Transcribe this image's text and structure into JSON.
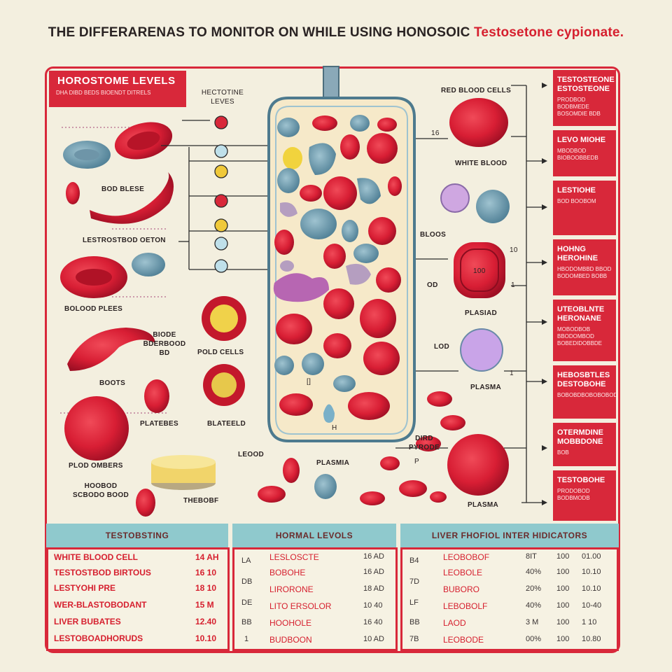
{
  "title": {
    "main": "THE DIFFERARENAS TO MONITOR ON WHILE USING HONOSOIC",
    "accent": "Testosetone cypionate."
  },
  "header_box": {
    "title": "HOROSTOME LEVELS",
    "subtitle": "DHA DIBD BEDS BIOENDT DITRELS"
  },
  "left_labels": [
    "BOD BLESE",
    "LESTROSTBOD OETON",
    "BOLOOD PLEES",
    "BIODE BDERBOOD BD",
    "BOOTS",
    "PLATEBES",
    "PLOD OMBERS",
    "HOOBOD SCBODO BOOD"
  ],
  "mid_labels": {
    "top": "HECTOTINE LEVES",
    "pold_cells": "POLD CELLS",
    "blateeld": "BLATEELD",
    "lood": "LEOOD",
    "thebobf": "THEBOBF",
    "plasmia_bottom": "PLASMIA"
  },
  "center_labels": {
    "n16": "16",
    "white_blood": "WHITE BLOOD",
    "bloos": "BLOOS",
    "od": "OD",
    "lod": "LOD",
    "sq": "[]",
    "n1": "H"
  },
  "right_labels": {
    "red_cells": "RED BLOOD CELLS",
    "n10": "10",
    "n1": "1",
    "oval_text": "100",
    "plasiad": "PLASIAD",
    "plasma_mid": "PLASMA",
    "n1b": "1",
    "pyrode": "DIRD PYRODE",
    "p": "P",
    "plasma_low": "PLASMA"
  },
  "right_boxes": [
    {
      "title": "TESTOSTEONE ESTOSTEONE",
      "sub": "PRODBOD BODBMEDE BOSOMDIE BDB"
    },
    {
      "title": "LEVO MIOHE",
      "sub": "MBODBOD BIOBOOBBEDB"
    },
    {
      "title": "LESTIOHE",
      "sub": "BOD BOOBOM"
    },
    {
      "title": "HOHNG HEROHINE",
      "sub": "HBODOMBBD BBOD BODOMBED BOBB"
    },
    {
      "title": "UTEOBLNTE HERONANE",
      "sub": "MOBODBOB BBODOMBOD BOBEDIDOBBDE"
    },
    {
      "title": "HEBOSBTLES DESTOBOHE",
      "sub": "BOBOBDBOBOBOBOD"
    },
    {
      "title": "OTERMDINE MOBBDONE",
      "sub": "BOB"
    },
    {
      "title": "TESTOBOHE",
      "sub": "PRODOBOD BODBMODB"
    }
  ],
  "bottom": {
    "headers": [
      "TESTOBSTING",
      "HORMAL LEVOLS",
      "LIVER FHOFIOL INTER HIDICATORS"
    ],
    "table1": [
      [
        "WHITE BLOOD CELL",
        "14 AH"
      ],
      [
        "TESTOSTBOD BIRTOUS",
        "16 10"
      ],
      [
        "LESTYOHI PRE",
        "18 10"
      ],
      [
        "WER-BLASTOBODANT",
        "15 M"
      ],
      [
        "LIVER BUBATES",
        "12.40"
      ],
      [
        "LESTOBOADHORUDS",
        "10.10"
      ]
    ],
    "table2_codes": [
      "LA",
      "DB",
      "DE",
      "BB",
      "1"
    ],
    "table2": [
      [
        "LESLOSCTE",
        "16 AD"
      ],
      [
        "BOBOHE",
        "16 AD"
      ],
      [
        "LIRORONE",
        "18 AD"
      ],
      [
        "LITO ERSOLOR",
        "10 40"
      ],
      [
        "HOOHOLE",
        "16 40"
      ],
      [
        "BUDBOON",
        "10 AD"
      ]
    ],
    "table3_codes": [
      "B4",
      "7D",
      "LF",
      "BB",
      "7B"
    ],
    "table3": [
      [
        "LEOBOBOF",
        "8IT",
        "100",
        "01.00"
      ],
      [
        "LEOBOLE",
        "40%",
        "100",
        "10.10"
      ],
      [
        "BUBORO",
        "20%",
        "100",
        "10.10"
      ],
      [
        "LEBOBOLF",
        "40%",
        "100",
        "10-40"
      ],
      [
        "LAOD",
        "3 M",
        "100",
        "1 10"
      ],
      [
        "LEOBODE",
        "00%",
        "100",
        "10.80"
      ]
    ]
  },
  "colors": {
    "accent_red": "#d8283a",
    "teal_band": "#8fc9cd",
    "background": "#f3efdf"
  }
}
